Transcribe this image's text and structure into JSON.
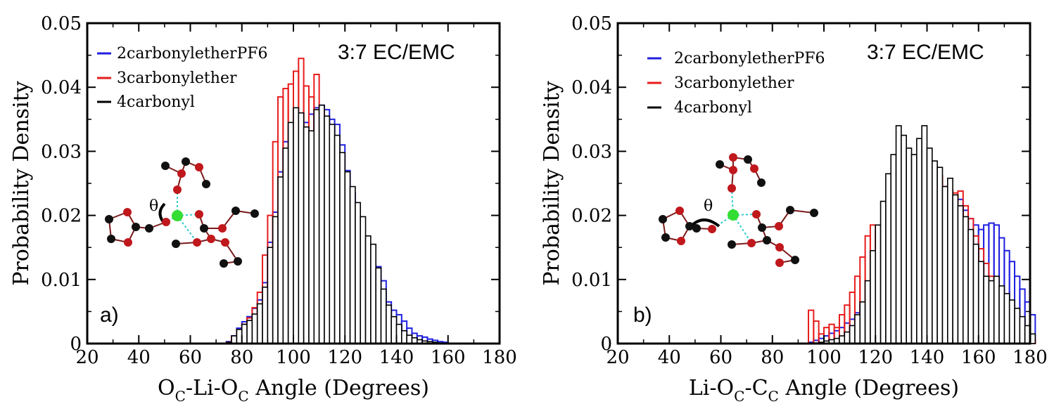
{
  "colors": {
    "blue": "#1f1fe0",
    "red": "#e81c1c",
    "black": "#000000",
    "li": "#33dd33",
    "o": "#c0181c",
    "c": "#111111",
    "dash": "#33cccc"
  },
  "chart_data": [
    {
      "type": "bar",
      "panel_label": "a)",
      "annotation": "3:7 EC/EMC",
      "ylabel": "Probability Density",
      "xlabel": {
        "main": "O",
        "sub1": "C",
        "mid": "-Li-O",
        "sub2": "C",
        "rest": " Angle (Degrees)"
      },
      "xlim": [
        20,
        180
      ],
      "ylim": [
        0,
        0.05
      ],
      "xticks": [
        "20",
        "40",
        "60",
        "80",
        "100",
        "120",
        "140",
        "160",
        "180"
      ],
      "yticks": [
        "0",
        "0.01",
        "0.02",
        "0.03",
        "0.04",
        "0.05"
      ],
      "inset_label": "θ",
      "bin_width": 2,
      "bin_start": 72,
      "series": [
        {
          "name": "2carbonyletherPF6",
          "color": "blue",
          "values": [
            0,
            0.0003,
            0.0012,
            0.0024,
            0.0034,
            0.0042,
            0.0055,
            0.0068,
            0.0095,
            0.0158,
            0.0205,
            0.0268,
            0.0315,
            0.0338,
            0.0338,
            0.0345,
            0.0345,
            0.0358,
            0.0368,
            0.0372,
            0.0365,
            0.035,
            0.0342,
            0.031,
            0.027,
            0.0235,
            0.0198,
            0.0158,
            0.0128,
            0.0122,
            0.012,
            0.0098,
            0.0065,
            0.0052,
            0.0045,
            0.0035,
            0.0024,
            0.0016,
            0.0012,
            0.001,
            0.0007,
            0.0005,
            0.0003,
            0.0002
          ]
        },
        {
          "name": "3carbonylether",
          "color": "red",
          "values": [
            0,
            0.0002,
            0.001,
            0.002,
            0.003,
            0.004,
            0.0056,
            0.008,
            0.0138,
            0.02,
            0.0315,
            0.0385,
            0.0398,
            0.0405,
            0.0425,
            0.0445,
            0.0402,
            0.0385,
            0.042,
            0.0365,
            0.0335,
            0.0302,
            0.0265,
            0.024,
            0.0198,
            0.0165,
            0.0132,
            0.0105,
            0.0082,
            0.0062,
            0.0045,
            0.0033,
            0.0026,
            0.002,
            0.0015,
            0.001,
            0.0006,
            0.0004,
            0.0003,
            0.0002,
            0.0001,
            0.0001,
            0.0,
            0.0
          ]
        },
        {
          "name": "4carbonyl",
          "color": "black",
          "values": [
            0,
            0.0002,
            0.0012,
            0.0022,
            0.003,
            0.0036,
            0.0046,
            0.0062,
            0.0088,
            0.015,
            0.0198,
            0.026,
            0.0305,
            0.0345,
            0.0368,
            0.036,
            0.0338,
            0.0332,
            0.0365,
            0.0372,
            0.0355,
            0.0342,
            0.0325,
            0.0298,
            0.0268,
            0.0245,
            0.022,
            0.0198,
            0.0168,
            0.0155,
            0.0118,
            0.0085,
            0.006,
            0.0042,
            0.003,
            0.002,
            0.0013,
            0.0009,
            0.0006,
            0.0004,
            0.0003,
            0.0002,
            0.0001,
            0.0
          ]
        }
      ]
    },
    {
      "type": "bar",
      "panel_label": "b)",
      "annotation": "3:7 EC/EMC",
      "ylabel": "Probability Density",
      "xlabel": {
        "main": "Li-O",
        "sub1": "C",
        "mid": "-C",
        "sub2": "C",
        "rest": " Angle (Degrees)"
      },
      "xlim": [
        20,
        180
      ],
      "ylim": [
        0,
        0.05
      ],
      "xticks": [
        "20",
        "40",
        "60",
        "80",
        "100",
        "120",
        "140",
        "160",
        "180"
      ],
      "yticks": [
        "0",
        "0.01",
        "0.02",
        "0.03",
        "0.04",
        "0.05"
      ],
      "inset_label": "θ",
      "bin_width": 2,
      "bin_start": 94,
      "series": [
        {
          "name": "2carbonyletherPF6",
          "color": "blue",
          "values": [
            0.0002,
            0.0005,
            0.0008,
            0.0012,
            0.0016,
            0.002,
            0.0025,
            0.0032,
            0.0038,
            0.0048,
            0.0062,
            0.0075,
            0.009,
            0.0118,
            0.0148,
            0.0185,
            0.0218,
            0.0245,
            0.0265,
            0.0275,
            0.0268,
            0.028,
            0.0265,
            0.025,
            0.0262,
            0.0238,
            0.0245,
            0.0232,
            0.0215,
            0.0225,
            0.0208,
            0.0195,
            0.0185,
            0.0178,
            0.0185,
            0.0188,
            0.0185,
            0.0165,
            0.0145,
            0.0128,
            0.0105,
            0.0085,
            0.0065,
            0.0045
          ]
        },
        {
          "name": "3carbonylether",
          "color": "red",
          "values": [
            0.0052,
            0.0035,
            0.0015,
            0.0025,
            0.003,
            0.0025,
            0.0045,
            0.006,
            0.008,
            0.0105,
            0.0135,
            0.0168,
            0.0185,
            0.0175,
            0.0178,
            0.0205,
            0.0225,
            0.0232,
            0.0255,
            0.0268,
            0.0262,
            0.0285,
            0.0285,
            0.0278,
            0.0275,
            0.0262,
            0.0245,
            0.024,
            0.0235,
            0.0238,
            0.0215,
            0.0195,
            0.0168,
            0.0148,
            0.0125,
            0.0105,
            0.0088,
            0.0068,
            0.0055,
            0.004,
            0.003,
            0.002,
            0.0012,
            0.0008
          ]
        },
        {
          "name": "4carbonyl",
          "color": "black",
          "values": [
            0,
            0.0001,
            0.0002,
            0.0004,
            0.0006,
            0.0008,
            0.0012,
            0.0018,
            0.0028,
            0.0045,
            0.0065,
            0.0098,
            0.0145,
            0.0185,
            0.0222,
            0.0265,
            0.0295,
            0.034,
            0.0325,
            0.0305,
            0.0295,
            0.032,
            0.034,
            0.0305,
            0.0285,
            0.0275,
            0.0245,
            0.0258,
            0.0232,
            0.0215,
            0.0198,
            0.0178,
            0.0155,
            0.0128,
            0.0105,
            0.0098,
            0.0105,
            0.009,
            0.0078,
            0.0068,
            0.0055,
            0.0042,
            0.0028,
            0.0015
          ]
        }
      ]
    }
  ]
}
